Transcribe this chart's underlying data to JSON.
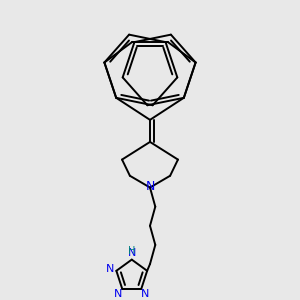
{
  "bg_color": "#e8e8e8",
  "bond_color": "#000000",
  "nitrogen_color": "#0000ee",
  "h_color": "#008080",
  "lw": 1.4,
  "figsize": [
    3.0,
    3.0
  ],
  "dpi": 100,
  "xlim": [
    0.0,
    1.0
  ],
  "ylim": [
    0.0,
    1.0
  ]
}
